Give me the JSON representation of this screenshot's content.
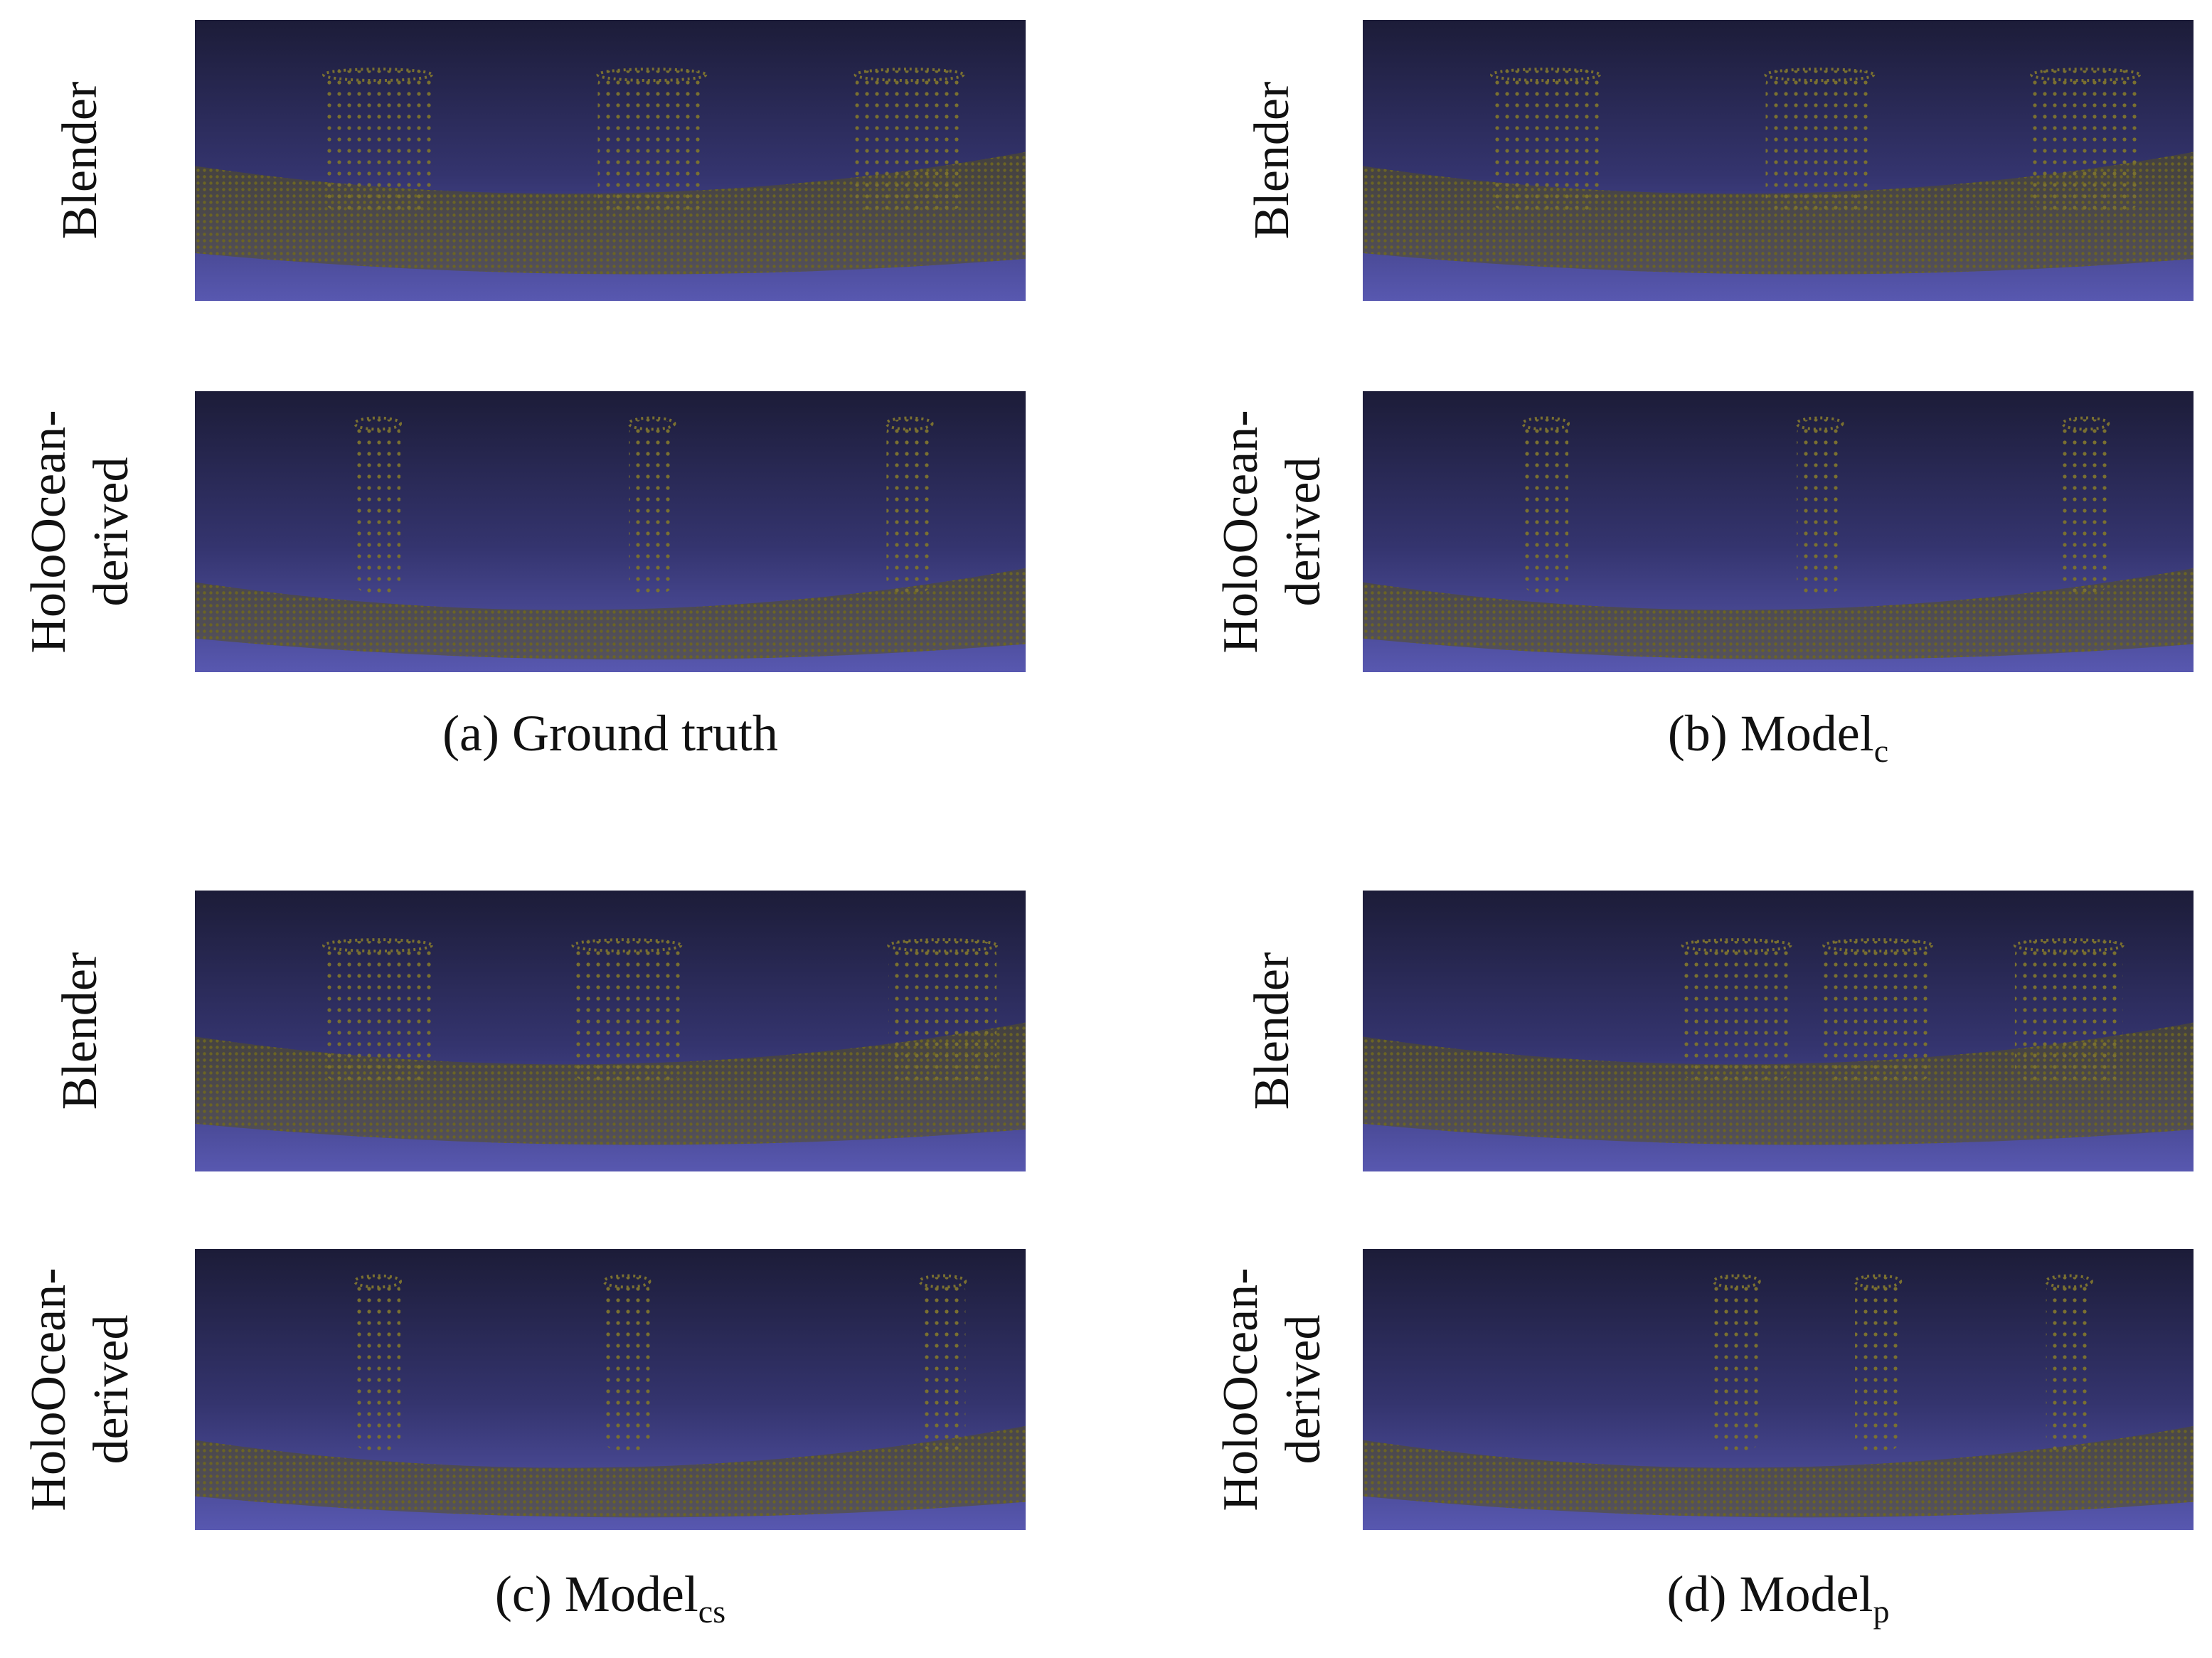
{
  "panels": [
    {
      "caption": {
        "text": "(a) Ground truth"
      },
      "rows": [
        {
          "label": [
            "Blender"
          ]
        },
        {
          "label": [
            "HoloOcean-",
            "derived"
          ]
        }
      ]
    },
    {
      "caption": {
        "text": "(b) Model",
        "sub": "c"
      },
      "rows": [
        {
          "label": [
            "Blender"
          ]
        },
        {
          "label": [
            "HoloOcean-",
            "derived"
          ]
        }
      ]
    },
    {
      "caption": {
        "text": "(c) Model",
        "sub": "cs"
      },
      "rows": [
        {
          "label": [
            "Blender"
          ]
        },
        {
          "label": [
            "HoloOcean-",
            "derived"
          ]
        }
      ]
    },
    {
      "caption": {
        "text": "(d) Model",
        "sub": "p"
      },
      "rows": [
        {
          "label": [
            "Blender"
          ]
        },
        {
          "label": [
            "HoloOcean-",
            "derived"
          ]
        }
      ]
    }
  ]
}
